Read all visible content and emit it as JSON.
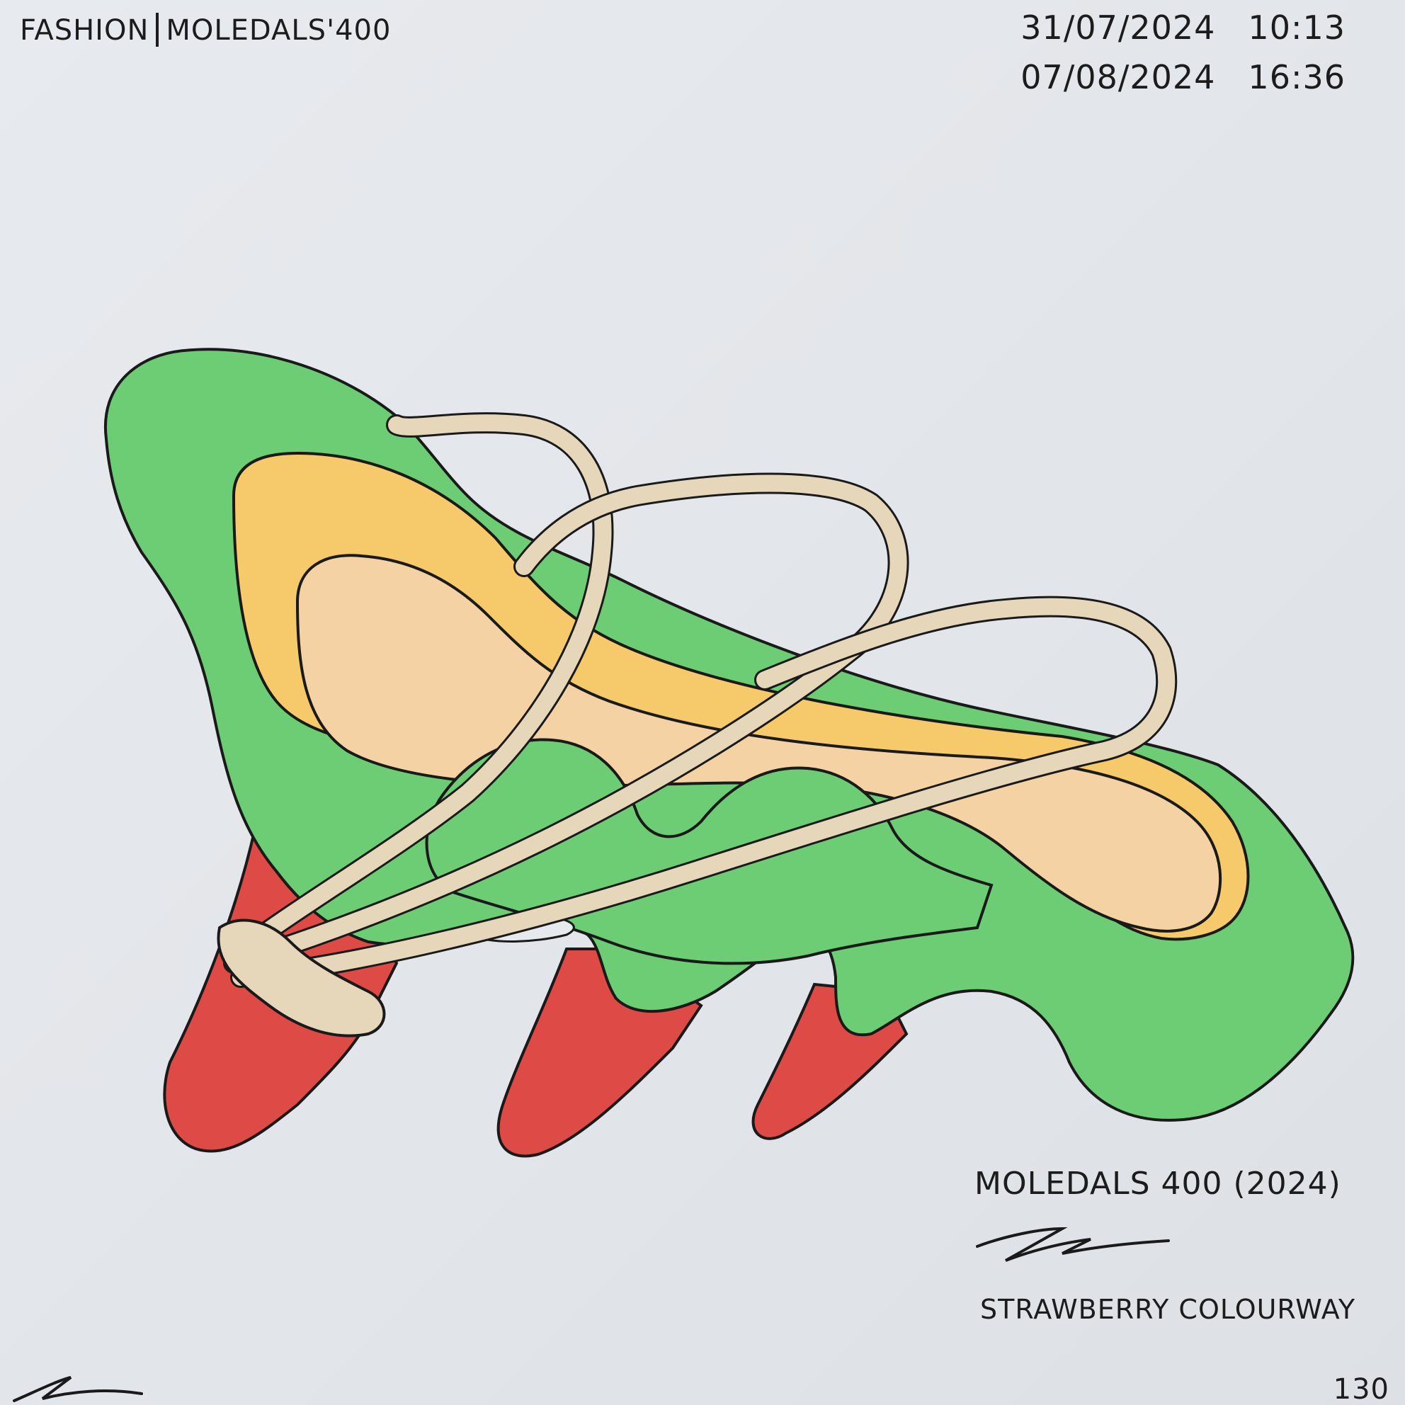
{
  "header": {
    "category": "FASHION",
    "project": "MOLEDALS'400"
  },
  "timestamps": [
    {
      "date": "31/07/2024",
      "time": "10:13"
    },
    {
      "date": "07/08/2024",
      "time": "16:36"
    }
  ],
  "caption": {
    "title": "MOLEDALS 400 (2024)",
    "colourway": "STRAWBERRY COLOURWAY",
    "signature": "signature"
  },
  "page_number": "130",
  "colors": {
    "paper": "#e5e8ec",
    "green": "#6ccd74",
    "yellow": "#f6c96a",
    "peach": "#f5d2a4",
    "red": "#de4a45",
    "strap": "#e6d7bb",
    "ink": "#1a1a1a"
  }
}
